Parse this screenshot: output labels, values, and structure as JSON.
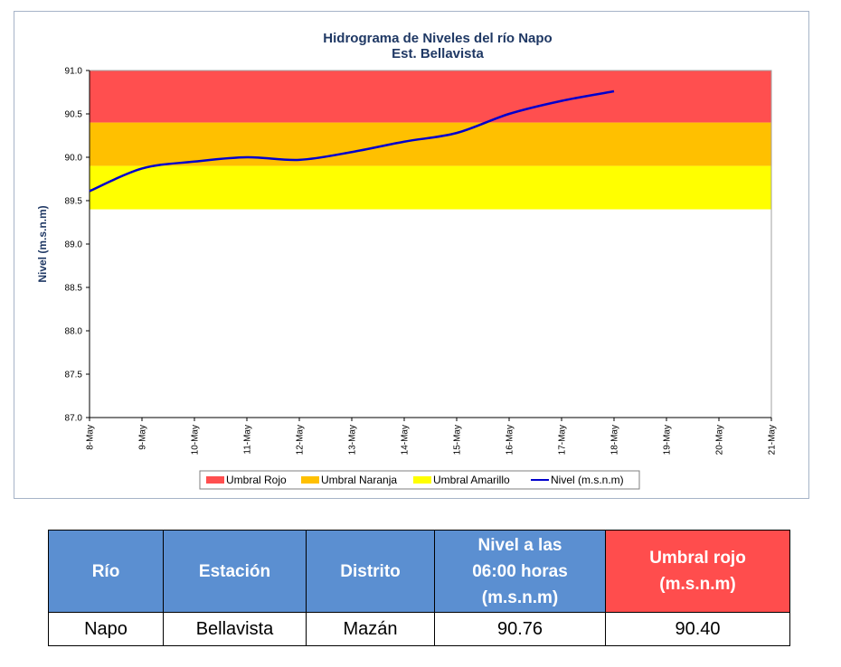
{
  "chart_data": {
    "type": "line",
    "title": [
      "Hidrograma de Niveles del río Napo",
      "Est. Bellavista"
    ],
    "ylabel": "Nivel (m.s.n.m)",
    "xlabel": "",
    "ylim": [
      87.0,
      91.0
    ],
    "ytick_labels": [
      "91.0",
      "90.5",
      "90.0",
      "89.5",
      "89.0",
      "88.5",
      "88.0",
      "87.5",
      "87.0"
    ],
    "ytick_values": [
      91.0,
      90.5,
      90.0,
      89.5,
      89.0,
      88.5,
      88.0,
      87.5,
      87.0
    ],
    "categories": [
      "8-May",
      "9-May",
      "10-May",
      "11-May",
      "12-May",
      "13-May",
      "14-May",
      "15-May",
      "16-May",
      "17-May",
      "18-May",
      "19-May",
      "20-May",
      "21-May"
    ],
    "bands": [
      {
        "name": "Umbral Rojo",
        "from": 90.4,
        "to": 91.0,
        "color": "#ff4f4f"
      },
      {
        "name": "Umbral Naranja",
        "from": 89.9,
        "to": 90.4,
        "color": "#ffc000"
      },
      {
        "name": "Umbral Amarillo",
        "from": 89.4,
        "to": 89.9,
        "color": "#ffff00"
      }
    ],
    "series": [
      {
        "name": "Nivel (m.s.n.m)",
        "color": "#0000cc",
        "values": [
          89.61,
          89.87,
          89.95,
          90.0,
          89.97,
          90.06,
          90.18,
          90.28,
          90.5,
          90.65,
          90.76,
          null,
          null,
          null
        ]
      }
    ],
    "legend_position": "bottom",
    "grid": false
  },
  "table": {
    "headers": [
      "Río",
      "Estación",
      "Distrito",
      "Nivel a las 06:00 horas (m.s.n.m)",
      "Umbral rojo (m.s.n.m)"
    ],
    "header_lines": {
      "nivel": [
        "Nivel a las",
        "06:00 horas",
        "(m.s.n.m)"
      ],
      "umbral": [
        "Umbral rojo",
        "(m.s.n.m)"
      ]
    },
    "row": [
      "Napo",
      "Bellavista",
      "Mazán",
      "90.76",
      "90.40"
    ],
    "colors": {
      "header_blue": "#5b8fd1",
      "header_red": "#ff4d4d"
    }
  }
}
